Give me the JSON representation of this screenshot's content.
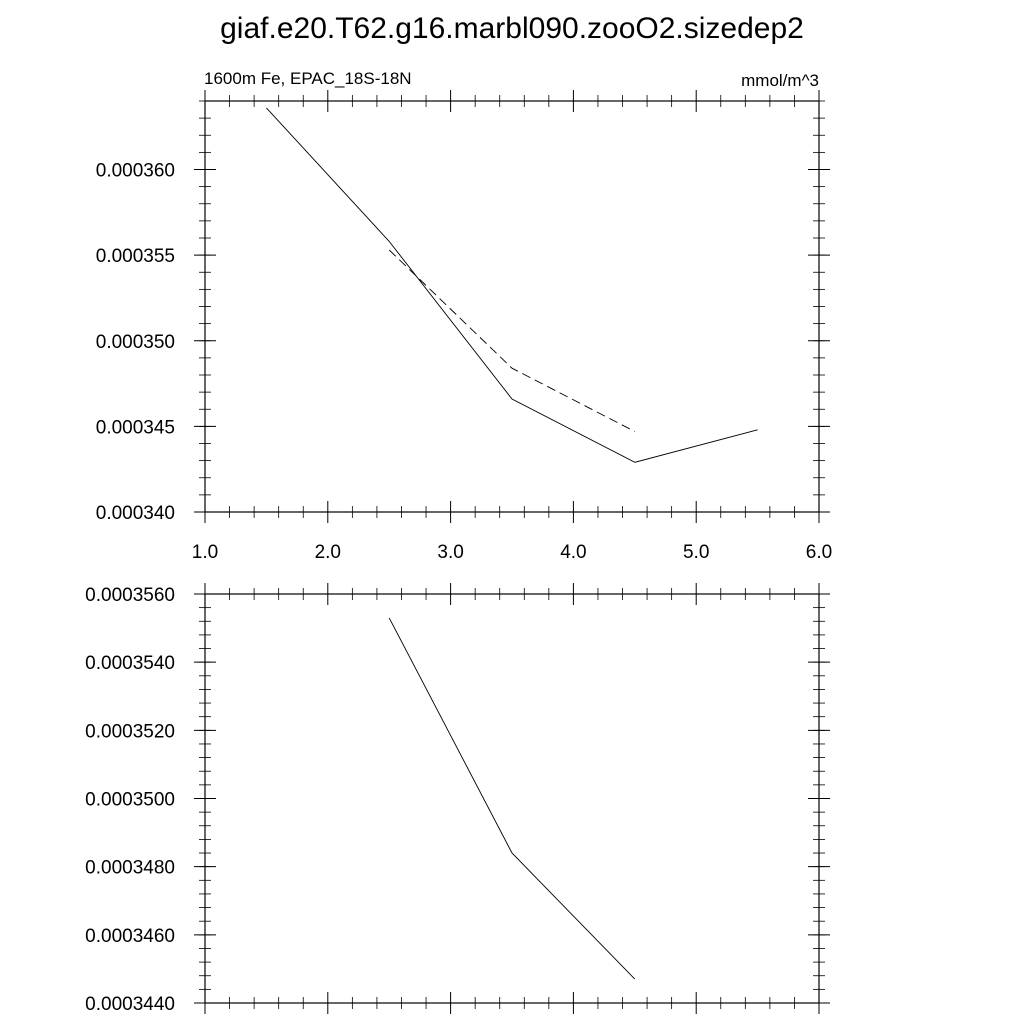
{
  "figure": {
    "title": "giaf.e20.T62.g16.marbl090.zooO2.sizedep2"
  },
  "chart_data": [
    {
      "type": "line",
      "subtitle_left": "1600m Fe, EPAC_18S-18N",
      "subtitle_right": "mmol/m^3",
      "xlim": [
        1.0,
        6.0
      ],
      "ylim": [
        0.00034,
        0.000364
      ],
      "x_ticks": [
        1.0,
        2.0,
        3.0,
        4.0,
        5.0,
        6.0
      ],
      "x_tick_labels": [
        "1.0",
        "2.0",
        "3.0",
        "4.0",
        "5.0",
        "6.0"
      ],
      "y_ticks": [
        0.00034,
        0.000345,
        0.00035,
        0.000355,
        0.00036
      ],
      "y_tick_labels": [
        "0.000340",
        "0.000345",
        "0.000350",
        "0.000355",
        "0.000360"
      ],
      "grid": false,
      "series": [
        {
          "style": "solid",
          "color": "#000000",
          "x": [
            1.5,
            2.5,
            3.5,
            4.5,
            5.5
          ],
          "y": [
            0.0003636,
            0.0003558,
            0.0003466,
            0.0003429,
            0.0003448
          ]
        },
        {
          "style": "dashed",
          "color": "#000000",
          "x": [
            2.5,
            3.5,
            4.5
          ],
          "y": [
            0.0003553,
            0.0003484,
            0.0003447
          ]
        }
      ]
    },
    {
      "type": "line",
      "xlim": [
        1.0,
        6.0
      ],
      "ylim": [
        0.000344,
        0.000356
      ],
      "x_ticks": [
        1.0,
        2.0,
        3.0,
        4.0,
        5.0,
        6.0
      ],
      "x_tick_labels": [],
      "y_ticks": [
        0.000344,
        0.000346,
        0.000348,
        0.00035,
        0.000352,
        0.000354,
        0.000356
      ],
      "y_tick_labels": [
        "0.0003440",
        "0.0003460",
        "0.0003480",
        "0.0003500",
        "0.0003520",
        "0.0003540",
        "0.0003560"
      ],
      "grid": false,
      "series": [
        {
          "style": "solid",
          "color": "#000000",
          "x": [
            2.5,
            3.5,
            4.5
          ],
          "y": [
            0.0003553,
            0.0003484,
            0.0003447
          ]
        }
      ]
    }
  ]
}
